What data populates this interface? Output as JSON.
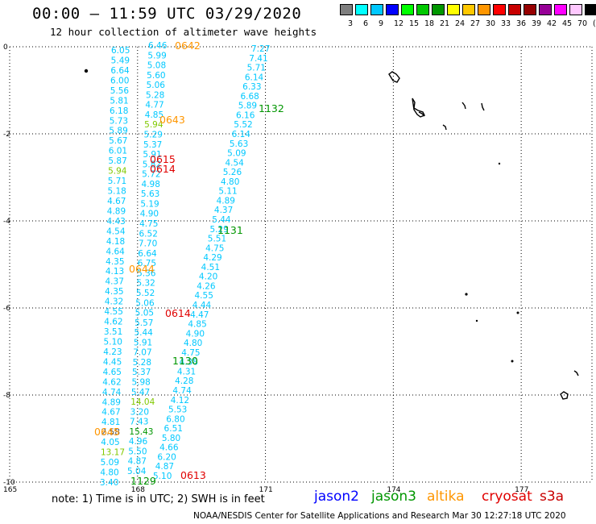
{
  "header": {
    "title": "00:00 – 11:59 UTC 03/29/2020",
    "subtitle": "12 hour collection of altimeter wave heights"
  },
  "colorbar": {
    "labels": [
      "3",
      "6",
      "9",
      "12",
      "15",
      "18",
      "21",
      "24",
      "27",
      "30",
      "33",
      "36",
      "39",
      "42",
      "45",
      "70",
      "(ft)"
    ],
    "colors": [
      "#7f7f7f",
      "#00ffff",
      "#00c8ff",
      "#0000ff",
      "#00ff00",
      "#00c800",
      "#009600",
      "#ffff00",
      "#ffc800",
      "#ff9600",
      "#ff0000",
      "#c80000",
      "#960000",
      "#960096",
      "#ff00ff",
      "#ffc8ff",
      "#000000"
    ]
  },
  "axes": {
    "x_ticks": [
      "165",
      "168",
      "171",
      "174",
      "177"
    ],
    "y_ticks": [
      "0",
      "-2",
      "-4",
      "-6",
      "-8",
      "-10"
    ],
    "grid": true,
    "grid_style": "dotted"
  },
  "colors": {
    "cyan_values": "#00c8ff",
    "time_orange": "#ff9600",
    "time_red": "#e00000",
    "time_green": "#009600",
    "jason2": "#0000ff",
    "jason3": "#009600",
    "altika": "#ff9600",
    "cryosat": "#e00000",
    "s3a": "#c80000"
  },
  "tracks": {
    "track_a": [
      "6.05",
      "5.49",
      "6.64",
      "6.00",
      "5.56",
      "5.81",
      "6.18",
      "5.73",
      "5.89",
      "5.67",
      "6.01",
      "5.87",
      "5.94",
      "5.71",
      "5.18",
      "4.67",
      "4.89",
      "4.43",
      "4.54",
      "4.18",
      "4.64",
      "4.35",
      "4.13",
      "4.37",
      "4.35",
      "4.32",
      "4.55",
      "4.62",
      "3.51",
      "5.10",
      "4.23",
      "4.45",
      "4.65",
      "4.62",
      "4.74",
      "4.89",
      "4.67",
      "4.81",
      "2.58",
      "4.05",
      "13.17",
      "5.09",
      "4.80",
      "3.40"
    ],
    "track_b": [
      "6.46",
      "5.99",
      "5.08",
      "5.60",
      "5.06",
      "5.28",
      "4.77",
      "4.85",
      "5.94",
      "5.29",
      "5.37",
      "5.91",
      "5.82",
      "5.72",
      "4.98",
      "5.63",
      "5.19",
      "4.90",
      "4.75",
      "6.52",
      "7.70",
      "6.64",
      "6.75",
      "5.36",
      "5.32",
      "5.52",
      "5.06",
      "5.05",
      "5.57",
      "5.44",
      "5.91",
      "7.07",
      "5.28",
      "5.37",
      "5.98",
      "5.47",
      "14.04",
      "3.20",
      "7.43",
      "15.43",
      "4.96",
      "5.50",
      "4.87",
      "5.04"
    ],
    "track_c": [
      "7.27",
      "7.41",
      "5.71",
      "6.14",
      "6.33",
      "6.68",
      "5.89",
      "6.16",
      "5.52",
      "6.14",
      "5.63",
      "5.09",
      "4.54",
      "5.26",
      "4.80",
      "5.11",
      "4.89",
      "4.37",
      "5.44",
      "5.29",
      "5.51",
      "4.75",
      "4.29",
      "4.51",
      "4.20",
      "4.26",
      "4.55",
      "4.44",
      "4.47",
      "4.85",
      "4.90",
      "4.80",
      "4.75",
      "4.38",
      "4.31",
      "4.28",
      "4.74",
      "4.12",
      "5.53",
      "6.80",
      "6.51",
      "5.80",
      "4.66",
      "6.20",
      "4.87",
      "5.10"
    ]
  },
  "time_labels": [
    {
      "text": "0642",
      "sat": "altika"
    },
    {
      "text": "0643",
      "sat": "altika"
    },
    {
      "text": "0615",
      "sat": "cryosat"
    },
    {
      "text": "0614",
      "sat": "cryosat"
    },
    {
      "text": "1132",
      "sat": "jason3"
    },
    {
      "text": "1131",
      "sat": "jason3"
    },
    {
      "text": "0644",
      "sat": "altika"
    },
    {
      "text": "0614",
      "sat": "cryosat"
    },
    {
      "text": "1130",
      "sat": "jason3"
    },
    {
      "text": "0645",
      "sat": "altika"
    },
    {
      "text": "0613",
      "sat": "cryosat"
    },
    {
      "text": "1129",
      "sat": "jason3"
    }
  ],
  "footer": {
    "note": "note: 1) Time is in UTC; 2) SWH is in feet",
    "legend": [
      {
        "label": "jason2",
        "key": "jason2"
      },
      {
        "label": "jason3",
        "key": "jason3"
      },
      {
        "label": "altika",
        "key": "altika"
      },
      {
        "label": "cryosat",
        "key": "cryosat"
      },
      {
        "label": "s3a",
        "key": "s3a"
      }
    ],
    "credit": "NOAA/NESDIS Center for Satellite Applications and Research   Mar 30 12:27:18 UTC 2020"
  }
}
